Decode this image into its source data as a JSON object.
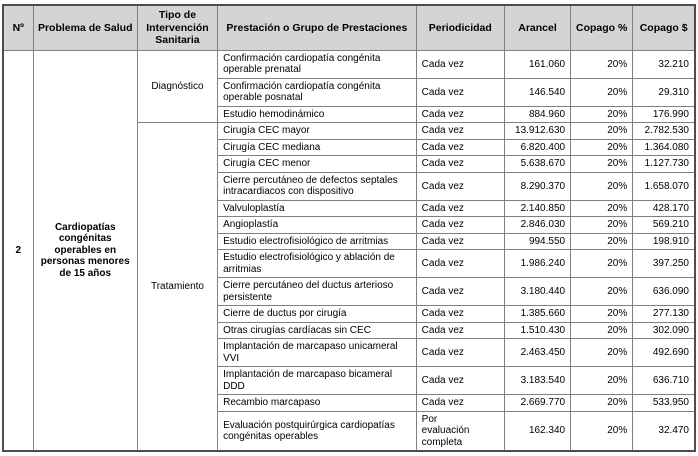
{
  "colors": {
    "header_bg": "#d4d4d4",
    "inner_border": "#808080",
    "outer_border": "#4d4d4d",
    "text": "#000000"
  },
  "header": {
    "col_no": "Nº",
    "col_problema": "Problema de Salud",
    "col_tipo": "Tipo de Intervención Sanitaria",
    "col_prestacion": "Prestación o Grupo de Prestaciones",
    "col_periodicidad": "Periodicidad",
    "col_arancel": "Arancel",
    "col_copago_pct": "Copago %",
    "col_copago_amt": "Copago $"
  },
  "problem": {
    "number": "2",
    "name": "Cardiopatías congénitas operables en personas menores de 15 años"
  },
  "sections": [
    {
      "type_label": "Diagnóstico",
      "rows": [
        {
          "prestacion": "Confirmación cardiopatía congénita operable prenatal",
          "periodicidad": "Cada vez",
          "arancel": "161.060",
          "copago_pct": "20%",
          "copago_amt": "32.210"
        },
        {
          "prestacion": "Confirmación cardiopatía congénita operable posnatal",
          "periodicidad": "Cada vez",
          "arancel": "146.540",
          "copago_pct": "20%",
          "copago_amt": "29.310"
        },
        {
          "prestacion": "Estudio hemodinámico",
          "periodicidad": "Cada vez",
          "arancel": "884.960",
          "copago_pct": "20%",
          "copago_amt": "176.990"
        }
      ]
    },
    {
      "type_label": "Tratamiento",
      "rows": [
        {
          "prestacion": "Cirugía CEC mayor",
          "periodicidad": "Cada vez",
          "arancel": "13.912.630",
          "copago_pct": "20%",
          "copago_amt": "2.782.530"
        },
        {
          "prestacion": "Cirugía CEC mediana",
          "periodicidad": "Cada vez",
          "arancel": "6.820.400",
          "copago_pct": "20%",
          "copago_amt": "1.364.080"
        },
        {
          "prestacion": "Cirugía CEC menor",
          "periodicidad": "Cada vez",
          "arancel": "5.638.670",
          "copago_pct": "20%",
          "copago_amt": "1.127.730"
        },
        {
          "prestacion": "Cierre percutáneo de defectos septales intracardiacos con dispositivo",
          "periodicidad": "Cada vez",
          "arancel": "8.290.370",
          "copago_pct": "20%",
          "copago_amt": "1.658.070"
        },
        {
          "prestacion": "Valvuloplastía",
          "periodicidad": "Cada vez",
          "arancel": "2.140.850",
          "copago_pct": "20%",
          "copago_amt": "428.170"
        },
        {
          "prestacion": "Angioplastía",
          "periodicidad": "Cada vez",
          "arancel": "2.846.030",
          "copago_pct": "20%",
          "copago_amt": "569.210"
        },
        {
          "prestacion": "Estudio electrofisiológico de arritmias",
          "periodicidad": "Cada vez",
          "arancel": "994.550",
          "copago_pct": "20%",
          "copago_amt": "198.910"
        },
        {
          "prestacion": "Estudio electrofisiológico y ablación de arritmias",
          "periodicidad": "Cada vez",
          "arancel": "1.986.240",
          "copago_pct": "20%",
          "copago_amt": "397.250"
        },
        {
          "prestacion": "Cierre percutáneo del ductus arterioso persistente",
          "periodicidad": "Cada vez",
          "arancel": "3.180.440",
          "copago_pct": "20%",
          "copago_amt": "636.090"
        },
        {
          "prestacion": "Cierre de ductus por cirugía",
          "periodicidad": "Cada vez",
          "arancel": "1.385.660",
          "copago_pct": "20%",
          "copago_amt": "277.130"
        },
        {
          "prestacion": "Otras cirugías cardíacas sin CEC",
          "periodicidad": "Cada vez",
          "arancel": "1.510.430",
          "copago_pct": "20%",
          "copago_amt": "302.090"
        },
        {
          "prestacion": "Implantación de marcapaso unicameral VVI",
          "periodicidad": "Cada vez",
          "arancel": "2.463.450",
          "copago_pct": "20%",
          "copago_amt": "492.690"
        },
        {
          "prestacion": "Implantación de marcapaso bicameral DDD",
          "periodicidad": "Cada vez",
          "arancel": "3.183.540",
          "copago_pct": "20%",
          "copago_amt": "636.710"
        },
        {
          "prestacion": "Recambio marcapaso",
          "periodicidad": "Cada vez",
          "arancel": "2.669.770",
          "copago_pct": "20%",
          "copago_amt": "533.950"
        },
        {
          "prestacion": "Evaluación postquirúrgica cardiopatías congénitas operables",
          "periodicidad": "Por evaluación completa",
          "arancel": "162.340",
          "copago_pct": "20%",
          "copago_amt": "32.470"
        }
      ]
    }
  ]
}
